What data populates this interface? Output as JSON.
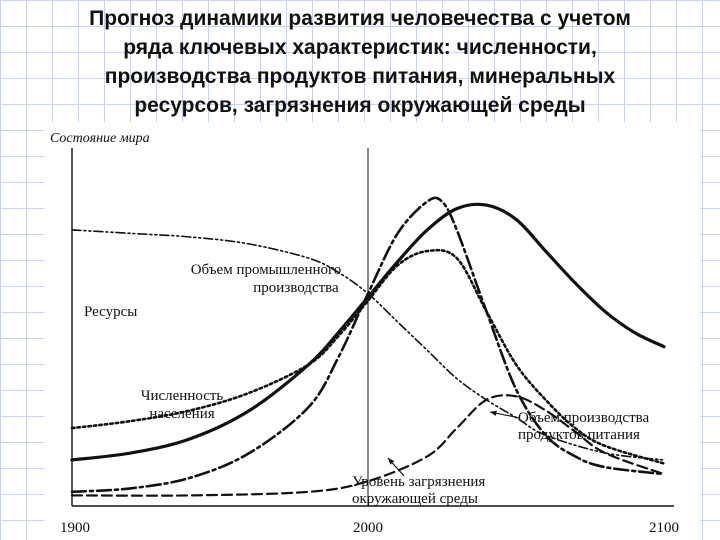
{
  "slide": {
    "title_lines": [
      "Прогноз динамики развития человечества с учетом",
      "ряда ключевых характеристик: численности,",
      "производства продуктов питания, минеральных",
      "ресурсов, загрязнения окружающей среды"
    ]
  },
  "chart_data": {
    "type": "line",
    "title": "",
    "ylabel": "Состояние мира",
    "xlabel": "",
    "xlim": [
      1900,
      2100
    ],
    "ylim": [
      0,
      100
    ],
    "x_ticks": [
      "1900",
      "2000",
      "2100"
    ],
    "vertical_marker": 2000,
    "grid": false,
    "legend": "none (inline labels)",
    "series": [
      {
        "name": "Ресурсы",
        "style": "dash-dot-dot",
        "x": [
          1900,
          1920,
          1940,
          1960,
          1980,
          1990,
          2000,
          2010,
          2020,
          2030,
          2040,
          2050,
          2060,
          2080,
          2100
        ],
        "y": [
          78,
          77,
          76,
          74,
          70,
          66,
          60,
          52,
          44,
          36,
          30,
          25,
          20,
          15,
          13
        ]
      },
      {
        "name": "Численность населения",
        "style": "solid",
        "x": [
          1900,
          1920,
          1940,
          1960,
          1980,
          1990,
          2000,
          2010,
          2020,
          2030,
          2040,
          2050,
          2060,
          2070,
          2080,
          2090,
          2100
        ],
        "y": [
          13,
          15,
          19,
          27,
          40,
          49,
          59,
          69,
          78,
          84,
          85,
          81,
          72,
          63,
          55,
          49,
          45
        ]
      },
      {
        "name": "Объем промышленного производства",
        "style": "dash-dot",
        "x": [
          1900,
          1920,
          1940,
          1960,
          1980,
          1990,
          2000,
          2010,
          2020,
          2025,
          2030,
          2040,
          2050,
          2060,
          2070,
          2080,
          2100
        ],
        "y": [
          4,
          5,
          8,
          15,
          28,
          42,
          60,
          77,
          86,
          86,
          78,
          55,
          33,
          20,
          14,
          11,
          9
        ]
      },
      {
        "name": "Объем производства продуктов питания",
        "style": "dotted",
        "x": [
          1900,
          1920,
          1940,
          1960,
          1980,
          1990,
          2000,
          2010,
          2020,
          2030,
          2040,
          2050,
          2060,
          2070,
          2080,
          2100
        ],
        "y": [
          22,
          24,
          27,
          32,
          40,
          48,
          58,
          68,
          72,
          70,
          55,
          40,
          30,
          22,
          17,
          12
        ]
      },
      {
        "name": "Уровень загрязнения окружающей среды",
        "style": "dashed",
        "x": [
          1900,
          1940,
          1980,
          2000,
          2020,
          2030,
          2040,
          2050,
          2060,
          2070,
          2080,
          2100
        ],
        "y": [
          3,
          3,
          4,
          7,
          14,
          22,
          30,
          31,
          27,
          21,
          15,
          9
        ]
      }
    ],
    "labels": {
      "resources": [
        "Ресурсы"
      ],
      "population": [
        "Численность",
        "населения"
      ],
      "industry": [
        "Объем промышленного",
        "производства"
      ],
      "food": [
        "Объем производства",
        "продуктов питания"
      ],
      "pollution": [
        "Уровень загрязнения",
        "окружающей среды"
      ]
    }
  }
}
